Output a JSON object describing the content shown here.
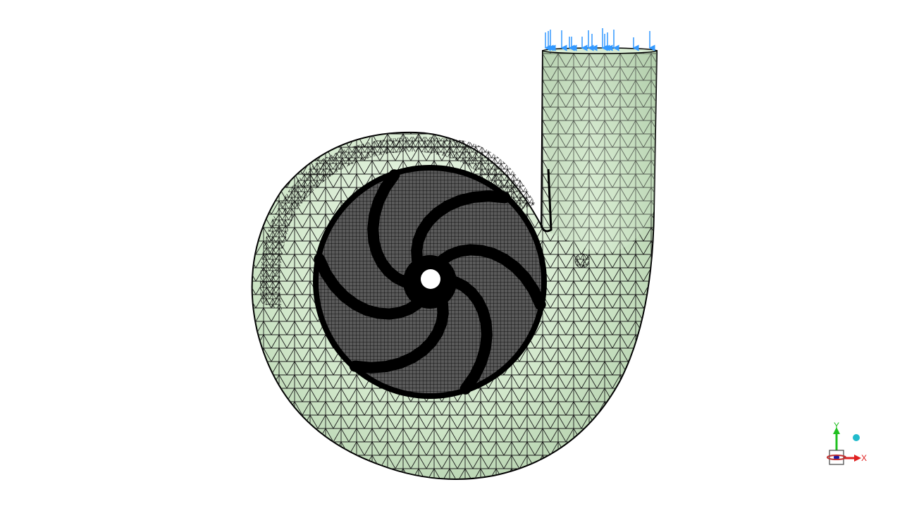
{
  "viewport": {
    "background": "#ffffff",
    "mesh_fill": "#cfe6c8",
    "mesh_fill_light": "#e6f4e0",
    "mesh_line": "#111111",
    "load_arrow_color": "#3399ff"
  },
  "triad": {
    "x_label": "X",
    "y_label": "Y",
    "x_color": "#e02020",
    "y_color": "#20c020",
    "z_color": "#1a1aa0",
    "sphere_color": "#22bbcc"
  },
  "icons": {
    "impeller": "impeller-icon",
    "volute": "volute-casing-icon",
    "outlet": "outlet-pipe-icon",
    "load": "load-arrow-icon",
    "triad": "coordinate-triad-icon"
  }
}
